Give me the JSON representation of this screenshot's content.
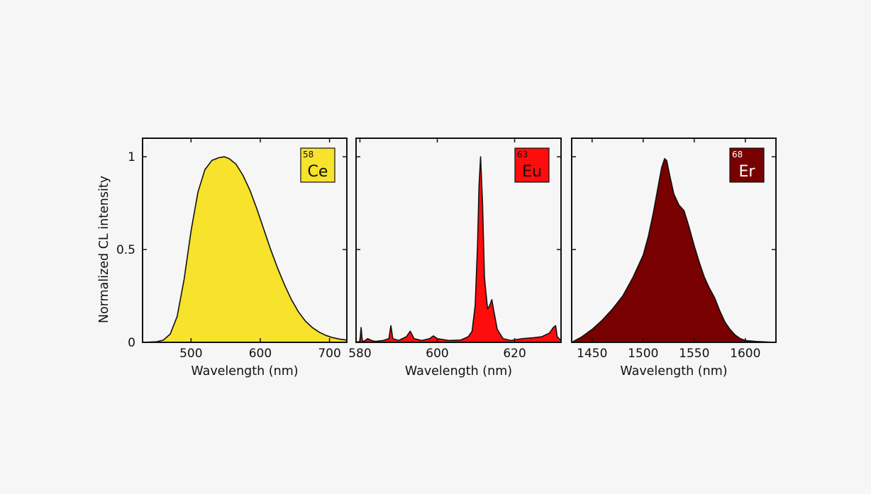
{
  "figure": {
    "ylabel": "Normalized CL intensity"
  },
  "chart_data": [
    {
      "type": "area",
      "element": {
        "number": "58",
        "symbol": "Ce",
        "color": "#f7e22c",
        "text_color": "#111111"
      },
      "xlabel": "Wavelength (nm)",
      "xlim": [
        430,
        725
      ],
      "ylim": [
        0,
        1.1
      ],
      "xticks": [
        500,
        600,
        700
      ],
      "yticks": [
        0,
        0.5,
        1
      ],
      "ytick_labels": [
        "0",
        "0.5",
        "1"
      ],
      "fill_color": "#f7e22c",
      "line_color": "#111111",
      "series": [
        {
          "x": [
            430,
            450,
            460,
            470,
            480,
            490,
            500,
            510,
            520,
            530,
            540,
            548,
            555,
            565,
            575,
            585,
            595,
            605,
            615,
            625,
            635,
            645,
            655,
            665,
            675,
            685,
            695,
            705,
            715,
            725
          ],
          "y": [
            0,
            0.003,
            0.012,
            0.045,
            0.14,
            0.34,
            0.6,
            0.81,
            0.93,
            0.98,
            0.995,
            1.0,
            0.99,
            0.96,
            0.9,
            0.82,
            0.72,
            0.61,
            0.5,
            0.4,
            0.31,
            0.23,
            0.165,
            0.115,
            0.08,
            0.055,
            0.037,
            0.025,
            0.017,
            0.012
          ]
        }
      ]
    },
    {
      "type": "area",
      "element": {
        "number": "63",
        "symbol": "Eu",
        "color": "#fe0d0d",
        "text_color": "#111111"
      },
      "xlabel": "Wavelength (nm)",
      "xlim": [
        579,
        632
      ],
      "ylim": [
        0,
        1.1
      ],
      "xticks": [
        580,
        600,
        620
      ],
      "yticks": [
        0,
        0.5,
        1
      ],
      "fill_color": "#fe0d0d",
      "line_color": "#111111",
      "series": [
        {
          "x": [
            579,
            580.0,
            580.3,
            580.6,
            581,
            582,
            583,
            584,
            586,
            587.5,
            588,
            588.5,
            590,
            592,
            593,
            594,
            596,
            598,
            599,
            600,
            603,
            606,
            608,
            609,
            609.8,
            610.4,
            610.8,
            611.2,
            611.7,
            612.2,
            613,
            613.6,
            614.1,
            614.7,
            615.5,
            617,
            619,
            622,
            625,
            627,
            629,
            630,
            630.6,
            631,
            632
          ],
          "y": [
            0,
            0.005,
            0.08,
            0.01,
            0.005,
            0.02,
            0.01,
            0.005,
            0.01,
            0.02,
            0.09,
            0.02,
            0.01,
            0.03,
            0.06,
            0.02,
            0.01,
            0.02,
            0.035,
            0.02,
            0.01,
            0.012,
            0.03,
            0.06,
            0.2,
            0.52,
            0.85,
            1.0,
            0.75,
            0.35,
            0.18,
            0.2,
            0.23,
            0.16,
            0.07,
            0.02,
            0.01,
            0.02,
            0.025,
            0.03,
            0.05,
            0.08,
            0.09,
            0.03,
            0.01
          ]
        }
      ]
    },
    {
      "type": "area",
      "element": {
        "number": "68",
        "symbol": "Er",
        "color": "#780000",
        "text_color": "#ffffff"
      },
      "xlabel": "Wavelength (nm)",
      "xlim": [
        1430,
        1630
      ],
      "ylim": [
        0,
        1.1
      ],
      "xticks": [
        1450,
        1500,
        1550,
        1600
      ],
      "yticks": [
        0,
        0.5,
        1
      ],
      "fill_color": "#780000",
      "line_color": "#111111",
      "series": [
        {
          "x": [
            1430,
            1440,
            1450,
            1460,
            1470,
            1480,
            1490,
            1500,
            1505,
            1510,
            1515,
            1518,
            1521,
            1523,
            1526,
            1530,
            1535,
            1540,
            1545,
            1550,
            1555,
            1560,
            1565,
            1570,
            1575,
            1580,
            1585,
            1590,
            1595,
            1600,
            1610,
            1620,
            1630
          ],
          "y": [
            0,
            0.03,
            0.07,
            0.12,
            0.18,
            0.25,
            0.35,
            0.47,
            0.57,
            0.7,
            0.85,
            0.94,
            0.99,
            0.98,
            0.9,
            0.8,
            0.74,
            0.71,
            0.62,
            0.52,
            0.43,
            0.35,
            0.29,
            0.24,
            0.17,
            0.11,
            0.07,
            0.04,
            0.02,
            0.01,
            0.005,
            0.002,
            0
          ]
        }
      ]
    }
  ]
}
